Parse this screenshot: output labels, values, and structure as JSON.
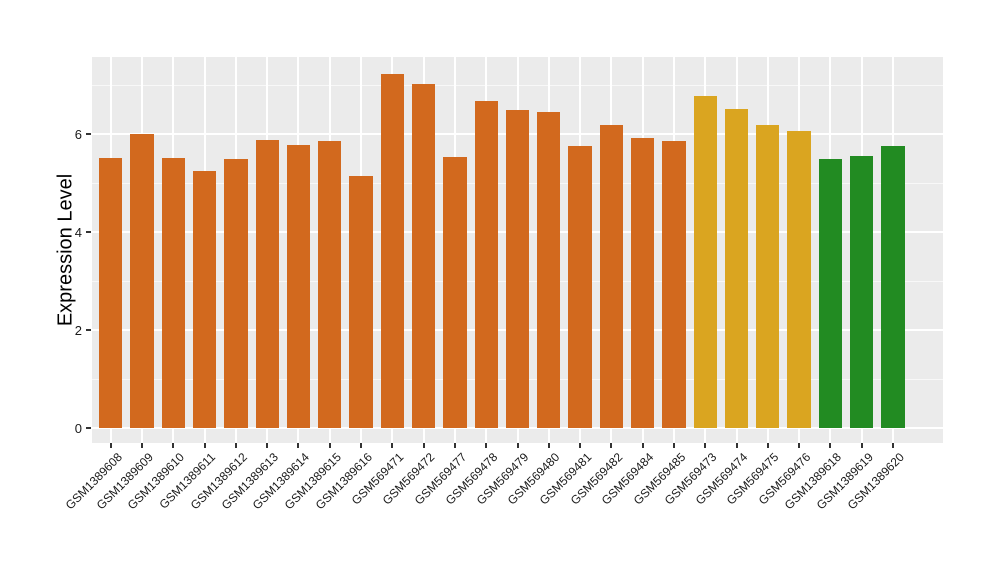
{
  "figure": {
    "background_color": "#FFFFFF",
    "panel_background_color": "#EBEBEB",
    "gridline_color": "#FFFFFF",
    "tick_mark_color": "#333333",
    "axis_text_color": "#1A1A1A"
  },
  "chart_data": {
    "type": "bar",
    "title": "",
    "xlabel": "",
    "ylabel": "Expression Level",
    "ylim": [
      0,
      7.58
    ],
    "yticks": [
      0,
      2,
      4,
      6
    ],
    "yticks_minor": [
      1,
      3,
      5,
      7
    ],
    "grid": "white major and minor horizontal lines plus vertical lines at each category, on gray panel",
    "legend_position": "none",
    "x_label_rotation_deg": 45,
    "categories": [
      "GSM1389608",
      "GSM1389609",
      "GSM1389610",
      "GSM1389611",
      "GSM1389612",
      "GSM1389613",
      "GSM1389614",
      "GSM1389615",
      "GSM1389616",
      "GSM569471",
      "GSM569472",
      "GSM569477",
      "GSM569478",
      "GSM569479",
      "GSM569480",
      "GSM569481",
      "GSM569482",
      "GSM569484",
      "GSM569485",
      "GSM569473",
      "GSM569474",
      "GSM569475",
      "GSM569476",
      "GSM1389618",
      "GSM1389619",
      "GSM1389620"
    ],
    "values": [
      5.52,
      6.0,
      5.52,
      5.25,
      5.49,
      5.88,
      5.78,
      5.86,
      5.14,
      7.24,
      7.02,
      5.54,
      6.67,
      6.49,
      6.46,
      5.77,
      6.2,
      5.92,
      5.87,
      6.78,
      6.51,
      6.2,
      6.07,
      5.49,
      5.55,
      5.76
    ],
    "colors": [
      "#D2691E",
      "#D2691E",
      "#D2691E",
      "#D2691E",
      "#D2691E",
      "#D2691E",
      "#D2691E",
      "#D2691E",
      "#D2691E",
      "#D2691E",
      "#D2691E",
      "#D2691E",
      "#D2691E",
      "#D2691E",
      "#D2691E",
      "#D2691E",
      "#D2691E",
      "#D2691E",
      "#D2691E",
      "#DAA520",
      "#DAA520",
      "#DAA520",
      "#DAA520",
      "#228B22",
      "#228B22",
      "#228B22"
    ],
    "color_legend_note": "orange = #D2691E, gold = #DAA520, green = #228B22 (no on-screen legend)"
  }
}
